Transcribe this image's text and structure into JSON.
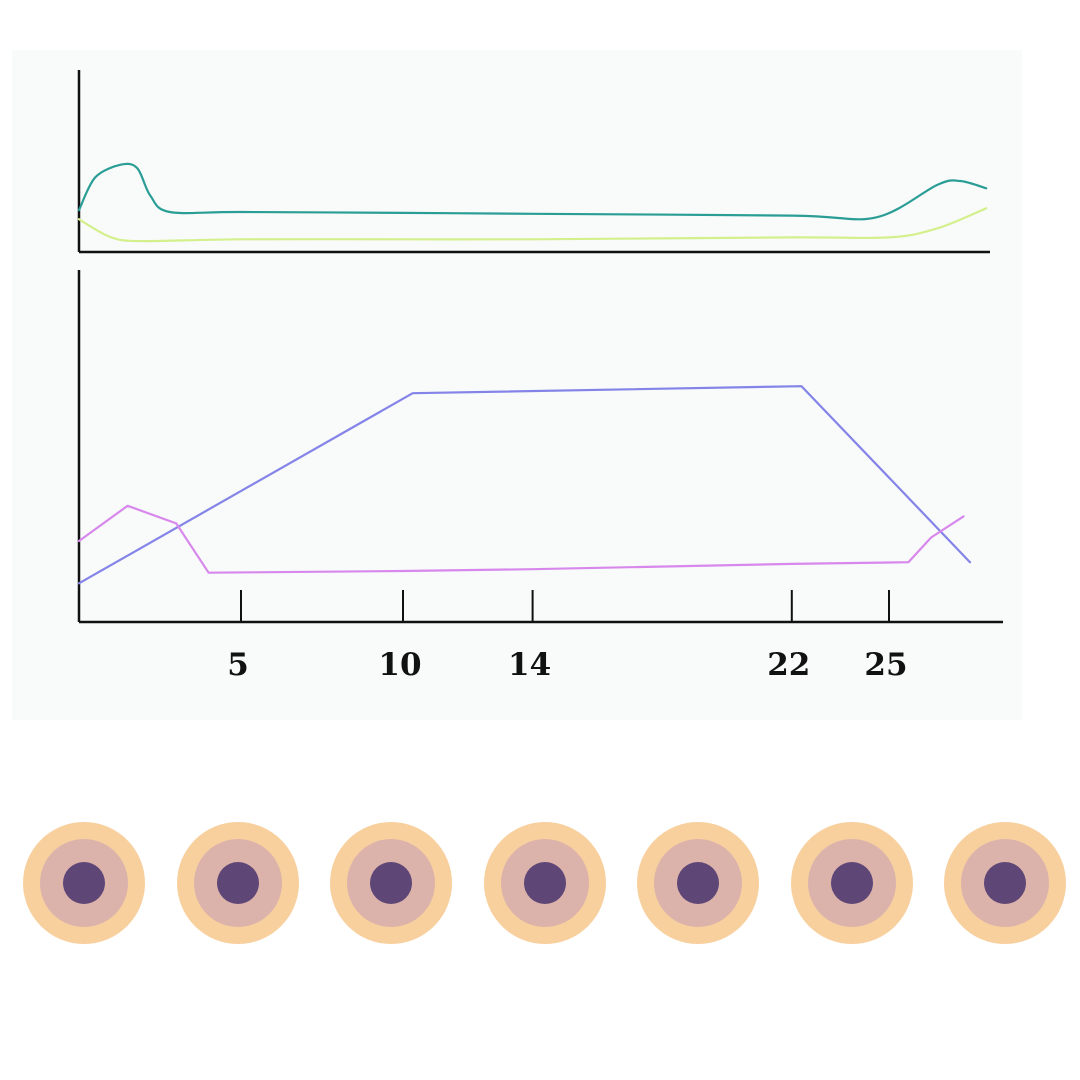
{
  "chart_data": [
    {
      "type": "line",
      "title": "",
      "xlabel": "",
      "ylabel": "",
      "xlim": [
        0,
        29
      ],
      "ylim": [
        0,
        1
      ],
      "grid": false,
      "legend": "none",
      "series": [
        {
          "color": "#2a9d95",
          "points": [
            [
              0,
              0.23
            ],
            [
              0.5,
              0.41
            ],
            [
              1.3,
              0.48
            ],
            [
              1.8,
              0.46
            ],
            [
              2.2,
              0.31
            ],
            [
              2.8,
              0.22
            ],
            [
              5,
              0.22
            ],
            [
              10,
              0.215
            ],
            [
              14,
              0.21
            ],
            [
              22,
              0.2
            ],
            [
              24.6,
              0.19
            ],
            [
              26.5,
              0.37
            ],
            [
              27.2,
              0.39
            ],
            [
              28,
              0.35
            ]
          ]
        },
        {
          "color": "#d4f08c",
          "points": [
            [
              0,
              0.18
            ],
            [
              1,
              0.08
            ],
            [
              2,
              0.06
            ],
            [
              5,
              0.07
            ],
            [
              10,
              0.07
            ],
            [
              14,
              0.07
            ],
            [
              22,
              0.08
            ],
            [
              25,
              0.08
            ],
            [
              26.5,
              0.13
            ],
            [
              28,
              0.24
            ]
          ]
        }
      ]
    },
    {
      "type": "line",
      "title": "",
      "xlabel": "",
      "ylabel": "",
      "xlim": [
        0,
        29
      ],
      "ylim": [
        0,
        1
      ],
      "grid": false,
      "legend": "none",
      "x_ticks": [
        5,
        10,
        14,
        22,
        25
      ],
      "tick_labels": [
        "5",
        "10",
        "14",
        "22",
        "25"
      ],
      "series": [
        {
          "color": "#8484e8",
          "points": [
            [
              0,
              0.11
            ],
            [
              10.3,
              0.65
            ],
            [
              22.3,
              0.67
            ],
            [
              27.5,
              0.17
            ]
          ]
        },
        {
          "color": "#d888ec",
          "points": [
            [
              0,
              0.23
            ],
            [
              1.5,
              0.33
            ],
            [
              3,
              0.28
            ],
            [
              4,
              0.14
            ],
            [
              10,
              0.145
            ],
            [
              14,
              0.15
            ],
            [
              22,
              0.165
            ],
            [
              25.6,
              0.17
            ],
            [
              26.3,
              0.24
            ],
            [
              27.3,
              0.3
            ]
          ]
        }
      ]
    }
  ],
  "decor": {
    "circles": [
      {
        "outer": "#f8d09e",
        "mid": "#dcb3ab",
        "inner": "#5e4676"
      },
      {
        "outer": "#f8d09e",
        "mid": "#dcb3ab",
        "inner": "#5e4676"
      },
      {
        "outer": "#f8d09e",
        "mid": "#dcb3ab",
        "inner": "#5e4676"
      },
      {
        "outer": "#f8d09e",
        "mid": "#dcb3ab",
        "inner": "#5e4676"
      },
      {
        "outer": "#f8d09e",
        "mid": "#dcb3ab",
        "inner": "#5e4676"
      },
      {
        "outer": "#f8d09e",
        "mid": "#dcb3ab",
        "inner": "#5e4676"
      },
      {
        "outer": "#f8d09e",
        "mid": "#dcb3ab",
        "inner": "#5e4676"
      }
    ]
  }
}
